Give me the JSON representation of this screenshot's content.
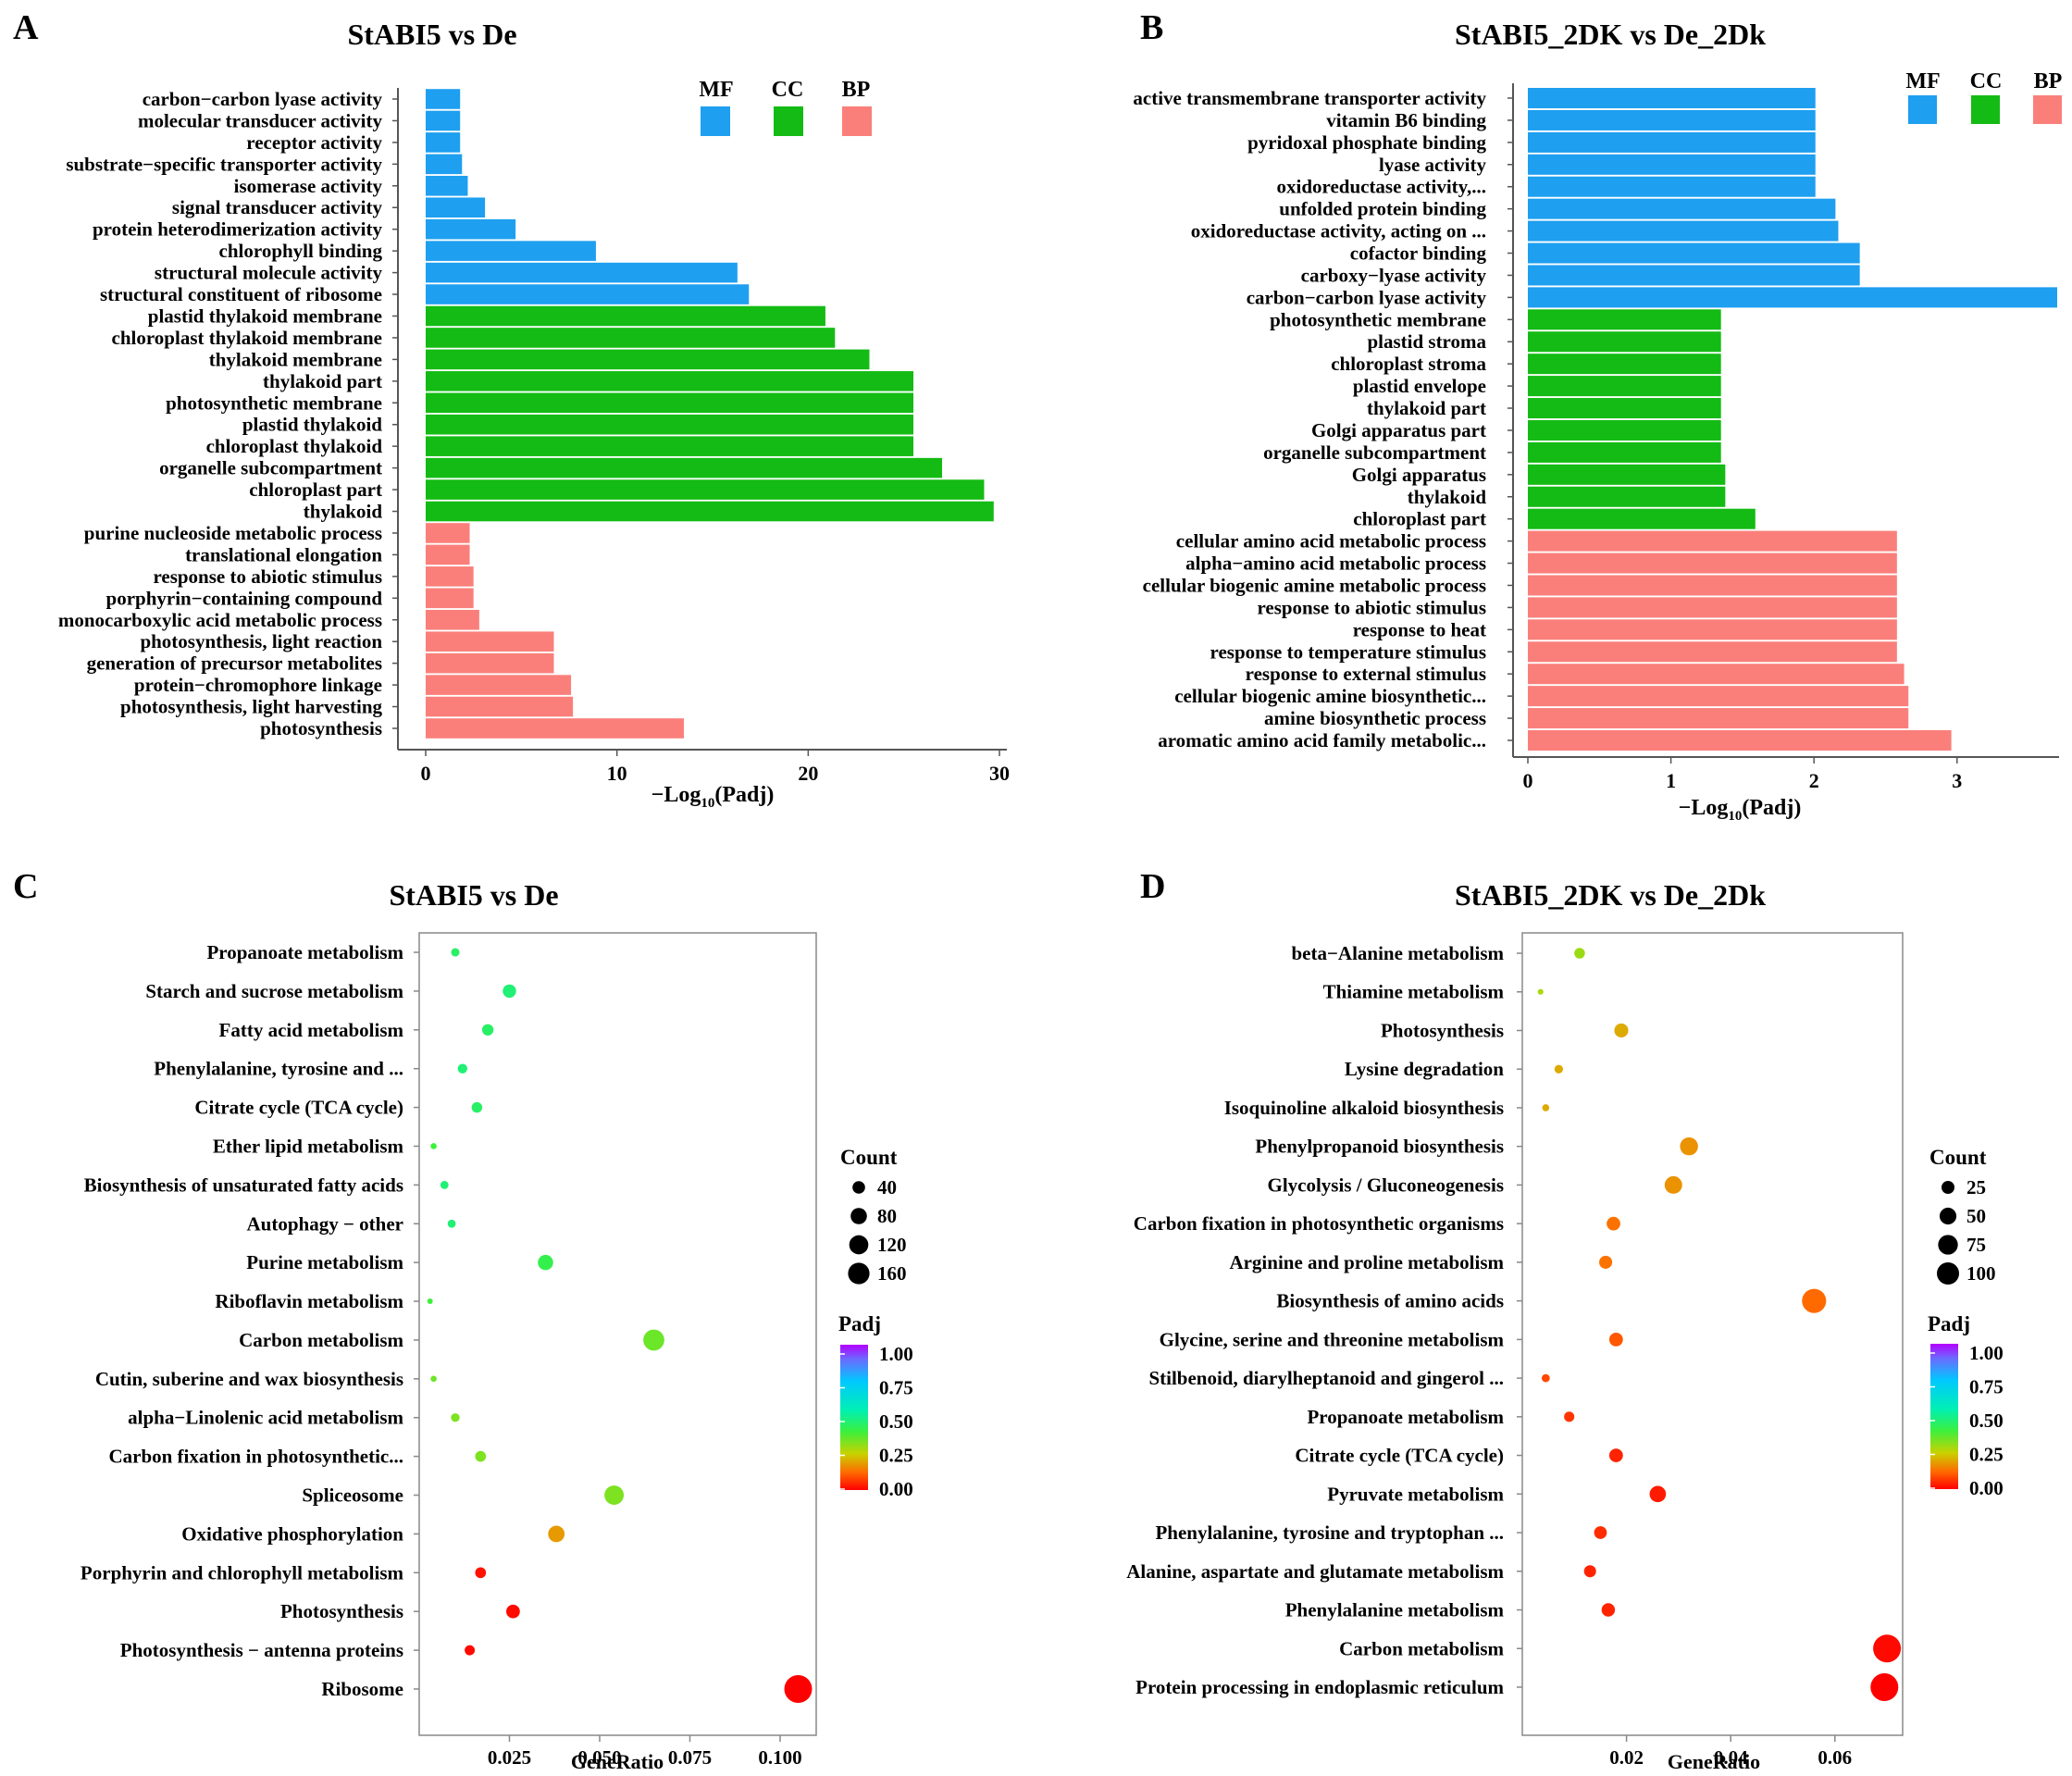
{
  "panel_letters": [
    "A",
    "B",
    "C",
    "D"
  ],
  "legend": {
    "categories": [
      {
        "label": "MF",
        "color": "#1e9ff0"
      },
      {
        "label": "CC",
        "color": "#14bb14"
      },
      {
        "label": "BP",
        "color": "#fa7f7a"
      }
    ],
    "count_title": "Count",
    "padj_title": "Padj"
  },
  "chart_data": [
    {
      "type": "bar",
      "panel": "A",
      "title": "StABI5 vs De",
      "xlabel_main": "−Log",
      "xlabel_sub": "10",
      "xlabel_tail": "(Padj)",
      "xlim": [
        0,
        30
      ],
      "xticks": [
        "0",
        "10",
        "20",
        "30"
      ],
      "categories": [
        {
          "label": "carbon−carbon lyase activity",
          "value": 1.8,
          "group": "MF"
        },
        {
          "label": "molecular transducer activity",
          "value": 1.8,
          "group": "MF"
        },
        {
          "label": "receptor activity",
          "value": 1.8,
          "group": "MF"
        },
        {
          "label": "substrate−specific transporter activity",
          "value": 1.9,
          "group": "MF"
        },
        {
          "label": "isomerase activity",
          "value": 2.2,
          "group": "MF"
        },
        {
          "label": "signal transducer activity",
          "value": 3.1,
          "group": "MF"
        },
        {
          "label": "protein heterodimerization activity",
          "value": 4.7,
          "group": "MF"
        },
        {
          "label": "chlorophyll binding",
          "value": 8.9,
          "group": "MF"
        },
        {
          "label": "structural molecule activity",
          "value": 16.3,
          "group": "MF"
        },
        {
          "label": "structural constituent of ribosome",
          "value": 16.9,
          "group": "MF"
        },
        {
          "label": "plastid thylakoid membrane",
          "value": 20.9,
          "group": "CC"
        },
        {
          "label": "chloroplast thylakoid membrane",
          "value": 21.4,
          "group": "CC"
        },
        {
          "label": "thylakoid membrane",
          "value": 23.2,
          "group": "CC"
        },
        {
          "label": "thylakoid part",
          "value": 25.5,
          "group": "CC"
        },
        {
          "label": "photosynthetic membrane",
          "value": 25.5,
          "group": "CC"
        },
        {
          "label": "plastid thylakoid",
          "value": 25.5,
          "group": "CC"
        },
        {
          "label": "chloroplast thylakoid",
          "value": 25.5,
          "group": "CC"
        },
        {
          "label": "organelle subcompartment",
          "value": 27.0,
          "group": "CC"
        },
        {
          "label": "chloroplast part",
          "value": 29.2,
          "group": "CC"
        },
        {
          "label": "thylakoid",
          "value": 29.7,
          "group": "CC"
        },
        {
          "label": "purine nucleoside metabolic process",
          "value": 2.3,
          "group": "BP"
        },
        {
          "label": "translational elongation",
          "value": 2.3,
          "group": "BP"
        },
        {
          "label": "response to abiotic stimulus",
          "value": 2.5,
          "group": "BP"
        },
        {
          "label": "porphyrin−containing compound",
          "value": 2.5,
          "group": "BP"
        },
        {
          "label": "monocarboxylic acid metabolic process",
          "value": 2.8,
          "group": "BP"
        },
        {
          "label": "photosynthesis, light reaction",
          "value": 6.7,
          "group": "BP"
        },
        {
          "label": "generation of precursor metabolites",
          "value": 6.7,
          "group": "BP"
        },
        {
          "label": "protein−chromophore linkage",
          "value": 7.6,
          "group": "BP"
        },
        {
          "label": "photosynthesis, light harvesting",
          "value": 7.7,
          "group": "BP"
        },
        {
          "label": "photosynthesis",
          "value": 13.5,
          "group": "BP"
        }
      ]
    },
    {
      "type": "bar",
      "panel": "B",
      "title": "StABI5_2DK vs De_2Dk",
      "xlabel_main": "−Log",
      "xlabel_sub": "10",
      "xlabel_tail": "(Padj)",
      "xlim": [
        0,
        3.7
      ],
      "xticks": [
        "0",
        "1",
        "2",
        "3"
      ],
      "categories": [
        {
          "label": "active transmembrane transporter activity",
          "value": 2.01,
          "group": "MF"
        },
        {
          "label": "vitamin B6 binding",
          "value": 2.01,
          "group": "MF"
        },
        {
          "label": "pyridoxal phosphate binding",
          "value": 2.01,
          "group": "MF"
        },
        {
          "label": "lyase activity",
          "value": 2.01,
          "group": "MF"
        },
        {
          "label": "oxidoreductase activity,...",
          "value": 2.01,
          "group": "MF"
        },
        {
          "label": "unfolded protein binding",
          "value": 2.15,
          "group": "MF"
        },
        {
          "label": "oxidoreductase activity, acting on ...",
          "value": 2.17,
          "group": "MF"
        },
        {
          "label": "cofactor binding",
          "value": 2.32,
          "group": "MF"
        },
        {
          "label": "carboxy−lyase activity",
          "value": 2.32,
          "group": "MF"
        },
        {
          "label": "carbon−carbon lyase activity",
          "value": 3.7,
          "group": "MF"
        },
        {
          "label": "photosynthetic membrane",
          "value": 1.35,
          "group": "CC"
        },
        {
          "label": "plastid stroma",
          "value": 1.35,
          "group": "CC"
        },
        {
          "label": "chloroplast stroma",
          "value": 1.35,
          "group": "CC"
        },
        {
          "label": "plastid envelope",
          "value": 1.35,
          "group": "CC"
        },
        {
          "label": "thylakoid part",
          "value": 1.35,
          "group": "CC"
        },
        {
          "label": "Golgi apparatus part",
          "value": 1.35,
          "group": "CC"
        },
        {
          "label": "organelle subcompartment",
          "value": 1.35,
          "group": "CC"
        },
        {
          "label": "Golgi apparatus",
          "value": 1.38,
          "group": "CC"
        },
        {
          "label": "thylakoid",
          "value": 1.38,
          "group": "CC"
        },
        {
          "label": "chloroplast part",
          "value": 1.59,
          "group": "CC"
        },
        {
          "label": "cellular amino acid metabolic process",
          "value": 2.58,
          "group": "BP"
        },
        {
          "label": "alpha−amino acid metabolic process",
          "value": 2.58,
          "group": "BP"
        },
        {
          "label": "cellular biogenic amine metabolic process",
          "value": 2.58,
          "group": "BP"
        },
        {
          "label": "response to abiotic stimulus",
          "value": 2.58,
          "group": "BP"
        },
        {
          "label": "response to heat",
          "value": 2.58,
          "group": "BP"
        },
        {
          "label": "response to temperature stimulus",
          "value": 2.58,
          "group": "BP"
        },
        {
          "label": "response to external stimulus",
          "value": 2.63,
          "group": "BP"
        },
        {
          "label": "cellular biogenic amine biosynthetic...",
          "value": 2.66,
          "group": "BP"
        },
        {
          "label": "amine biosynthetic process",
          "value": 2.66,
          "group": "BP"
        },
        {
          "label": "aromatic amino acid family metabolic...",
          "value": 2.96,
          "group": "BP"
        }
      ]
    },
    {
      "type": "scatter",
      "panel": "C",
      "title": "StABI5 vs De",
      "xlabel": "GeneRatio",
      "xlim": [
        0.0,
        0.11
      ],
      "xticks": [
        "0.025",
        "0.050",
        "0.075",
        "0.100"
      ],
      "xtick_values": [
        0.025,
        0.05,
        0.075,
        0.1
      ],
      "size_legend": {
        "labels": [
          "40",
          "80",
          "120",
          "160"
        ],
        "values": [
          40,
          80,
          120,
          160
        ]
      },
      "color_legend": {
        "labels": [
          "1.00",
          "0.75",
          "0.50",
          "0.25",
          "0.00"
        ]
      },
      "points": [
        {
          "label": "Propanoate metabolism",
          "ratio": 0.01,
          "count": 15,
          "padj": 0.45
        },
        {
          "label": "Starch and sucrose metabolism",
          "ratio": 0.025,
          "count": 38,
          "padj": 0.47
        },
        {
          "label": "Fatty acid metabolism",
          "ratio": 0.019,
          "count": 28,
          "padj": 0.45
        },
        {
          "label": "Phenylalanine, tyrosine and ...",
          "ratio": 0.012,
          "count": 20,
          "padj": 0.47
        },
        {
          "label": "Citrate cycle (TCA cycle)",
          "ratio": 0.016,
          "count": 24,
          "padj": 0.45
        },
        {
          "label": "Ether lipid metabolism",
          "ratio": 0.004,
          "count": 8,
          "padj": 0.4
        },
        {
          "label": "Biosynthesis of unsaturated fatty acids",
          "ratio": 0.007,
          "count": 14,
          "padj": 0.47
        },
        {
          "label": "Autophagy − other",
          "ratio": 0.009,
          "count": 14,
          "padj": 0.47
        },
        {
          "label": "Purine metabolism",
          "ratio": 0.035,
          "count": 50,
          "padj": 0.42
        },
        {
          "label": "Riboflavin metabolism",
          "ratio": 0.003,
          "count": 6,
          "padj": 0.4
        },
        {
          "label": "Carbon metabolism",
          "ratio": 0.065,
          "count": 95,
          "padj": 0.35
        },
        {
          "label": "Cutin, suberine and wax biosynthesis",
          "ratio": 0.004,
          "count": 8,
          "padj": 0.35
        },
        {
          "label": "alpha−Linolenic acid metabolism",
          "ratio": 0.01,
          "count": 16,
          "padj": 0.33
        },
        {
          "label": "Carbon fixation in photosynthetic...",
          "ratio": 0.017,
          "count": 25,
          "padj": 0.33
        },
        {
          "label": "Spliceosome",
          "ratio": 0.054,
          "count": 80,
          "padj": 0.33
        },
        {
          "label": "Oxidative phosphorylation",
          "ratio": 0.038,
          "count": 58,
          "padj": 0.18
        },
        {
          "label": "Porphyrin and chlorophyll metabolism",
          "ratio": 0.017,
          "count": 25,
          "padj": 0.02
        },
        {
          "label": "Photosynthesis",
          "ratio": 0.026,
          "count": 40,
          "padj": 0.01
        },
        {
          "label": "Photosynthesis − antenna proteins",
          "ratio": 0.014,
          "count": 22,
          "padj": 0.01
        },
        {
          "label": "Ribosome",
          "ratio": 0.105,
          "count": 165,
          "padj": 0.0
        }
      ]
    },
    {
      "type": "scatter",
      "panel": "D",
      "title": "StABI5_2DK vs De_2Dk",
      "xlabel": "GeneRatio",
      "xlim": [
        0.0,
        0.073
      ],
      "xticks": [
        "0.02",
        "0.04",
        "0.06"
      ],
      "xtick_values": [
        0.02,
        0.04,
        0.06
      ],
      "size_legend": {
        "labels": [
          "25",
          "50",
          "75",
          "100"
        ],
        "values": [
          25,
          50,
          75,
          100
        ]
      },
      "color_legend": {
        "labels": [
          "1.00",
          "0.75",
          "0.50",
          "0.25",
          "0.00"
        ]
      },
      "points": [
        {
          "label": "beta−Alanine metabolism",
          "ratio": 0.011,
          "count": 14,
          "padj": 0.3
        },
        {
          "label": "Thiamine metabolism",
          "ratio": 0.0035,
          "count": 4,
          "padj": 0.28
        },
        {
          "label": "Photosynthesis",
          "ratio": 0.019,
          "count": 24,
          "padj": 0.2
        },
        {
          "label": "Lysine degradation",
          "ratio": 0.007,
          "count": 9,
          "padj": 0.2
        },
        {
          "label": "Isoquinoline alkaloid biosynthesis",
          "ratio": 0.0045,
          "count": 6,
          "padj": 0.2
        },
        {
          "label": "Phenylpropanoid biosynthesis",
          "ratio": 0.032,
          "count": 40,
          "padj": 0.17
        },
        {
          "label": "Glycolysis / Gluconeogenesis",
          "ratio": 0.029,
          "count": 38,
          "padj": 0.17
        },
        {
          "label": "Carbon fixation in photosynthetic organisms",
          "ratio": 0.0175,
          "count": 23,
          "padj": 0.13
        },
        {
          "label": "Arginine and proline metabolism",
          "ratio": 0.016,
          "count": 21,
          "padj": 0.13
        },
        {
          "label": "Biosynthesis of amino acids",
          "ratio": 0.056,
          "count": 72,
          "padj": 0.12
        },
        {
          "label": "Glycine, serine and threonine metabolism",
          "ratio": 0.018,
          "count": 23,
          "padj": 0.1
        },
        {
          "label": "Stilbenoid, diarylheptanoid and gingerol ...",
          "ratio": 0.0045,
          "count": 8,
          "padj": 0.08
        },
        {
          "label": "Propanoate metabolism",
          "ratio": 0.009,
          "count": 13,
          "padj": 0.06
        },
        {
          "label": "Citrate cycle (TCA cycle)",
          "ratio": 0.018,
          "count": 23,
          "padj": 0.04
        },
        {
          "label": "Pyruvate metabolism",
          "ratio": 0.026,
          "count": 33,
          "padj": 0.03
        },
        {
          "label": "Phenylalanine, tyrosine and tryptophan ...",
          "ratio": 0.015,
          "count": 20,
          "padj": 0.05
        },
        {
          "label": "Alanine, aspartate and glutamate metabolism",
          "ratio": 0.013,
          "count": 18,
          "padj": 0.04
        },
        {
          "label": "Phenylalanine metabolism",
          "ratio": 0.0165,
          "count": 22,
          "padj": 0.04
        },
        {
          "label": "Carbon metabolism",
          "ratio": 0.07,
          "count": 95,
          "padj": 0.01
        },
        {
          "label": "Protein processing in endoplasmic reticulum",
          "ratio": 0.0695,
          "count": 95,
          "padj": 0.0
        }
      ]
    }
  ]
}
